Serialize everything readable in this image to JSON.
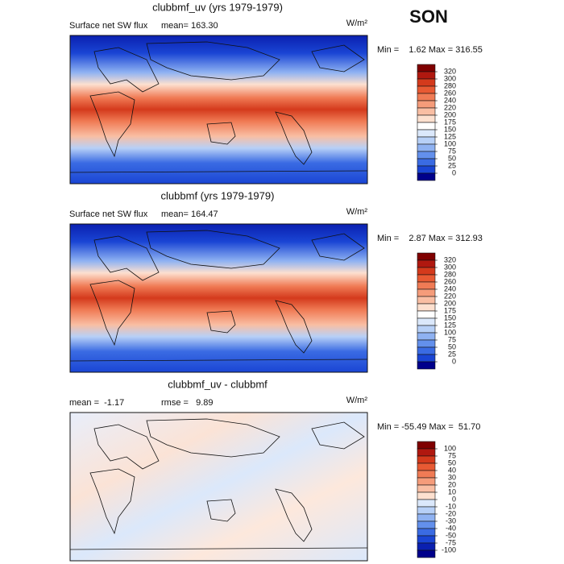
{
  "season": "SON",
  "chart_data": [
    {
      "type": "map",
      "title": "clubbmf_uv (yrs 1979-1979)",
      "left_label": "Surface net SW flux",
      "mid_label": "mean= 163.30",
      "units": "W/m²",
      "stats": "Min =    1.62 Max = 316.55",
      "levels": [
        320,
        300,
        280,
        260,
        240,
        220,
        200,
        175,
        150,
        125,
        100,
        75,
        50,
        25,
        0
      ],
      "colors": [
        "#7f0000",
        "#b0180f",
        "#d43a1c",
        "#e85a33",
        "#f07b55",
        "#f59c7a",
        "#f9bea3",
        "#fde0cf",
        "#ffffff",
        "#dbe8fb",
        "#b7d0f7",
        "#8fb2f2",
        "#6390ec",
        "#3a6be3",
        "#1a45d4",
        "#00008b"
      ]
    },
    {
      "type": "map",
      "title": "clubbmf (yrs 1979-1979)",
      "left_label": "Surface net SW flux",
      "mid_label": "mean= 164.47",
      "units": "W/m²",
      "stats": "Min =    2.87 Max = 312.93",
      "levels": [
        320,
        300,
        280,
        260,
        240,
        220,
        200,
        175,
        150,
        125,
        100,
        75,
        50,
        25,
        0
      ],
      "colors": [
        "#7f0000",
        "#b0180f",
        "#d43a1c",
        "#e85a33",
        "#f07b55",
        "#f59c7a",
        "#f9bea3",
        "#fde0cf",
        "#ffffff",
        "#dbe8fb",
        "#b7d0f7",
        "#8fb2f2",
        "#6390ec",
        "#3a6be3",
        "#1a45d4",
        "#00008b"
      ]
    },
    {
      "type": "map",
      "title": "clubbmf_uv - clubbmf",
      "left_label": "mean =  -1.17",
      "mid_label": "rmse =   9.89",
      "units": "W/m²",
      "stats": "Min = -55.49 Max =  51.70",
      "levels": [
        100,
        75,
        50,
        40,
        30,
        20,
        10,
        0,
        -10,
        -20,
        -30,
        -40,
        -50,
        -75,
        -100
      ],
      "colors": [
        "#7f0000",
        "#b0180f",
        "#d43a1c",
        "#e85a33",
        "#f07b55",
        "#f59c7a",
        "#f9bea3",
        "#fde0cf",
        "#dbe8fb",
        "#b7d0f7",
        "#8fb2f2",
        "#6390ec",
        "#3a6be3",
        "#1a45d4",
        "#0a20b0",
        "#00008b"
      ]
    }
  ]
}
